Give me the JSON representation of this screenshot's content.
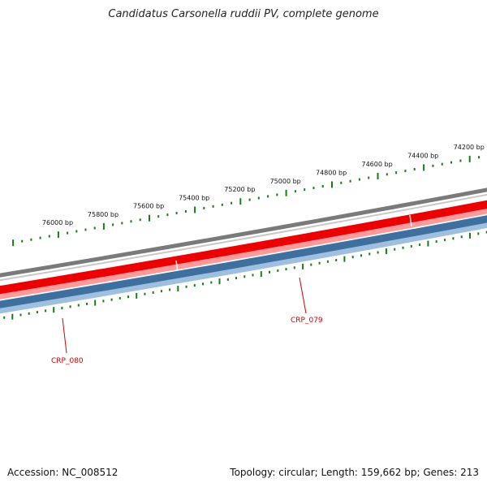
{
  "title": "Candidatus Carsonella ruddii PV, complete genome",
  "accession": "Accession: NC_008512",
  "topology": "Topology: circular; Length: 159,662 bp; Genes: 213",
  "colors": {
    "backbone": "#7a7a7a",
    "forward_gene": "#ee0000",
    "reverse_gene": "#3d6f9f",
    "ticks": "#1a7a1a",
    "gene_label": "#cc0000"
  },
  "ruler": {
    "labels": [
      "76000 bp",
      "75800 bp",
      "75600 bp",
      "75400 bp",
      "75200 bp",
      "75000 bp",
      "74800 bp",
      "74600 bp",
      "74400 bp",
      "74200 bp"
    ]
  },
  "genes": [
    {
      "label": "CRP_079"
    },
    {
      "label": "CRP_080"
    }
  ]
}
